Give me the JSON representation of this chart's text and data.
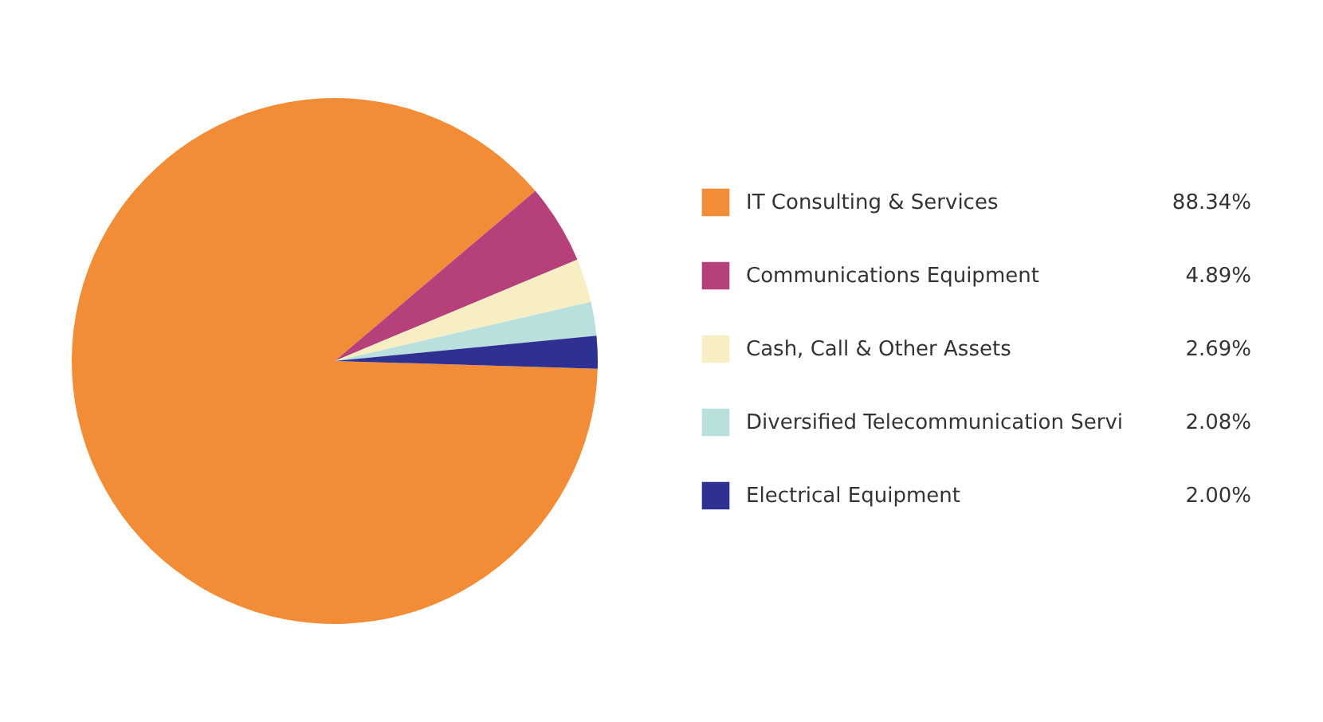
{
  "chart_data": {
    "type": "pie",
    "categories": [
      "IT Consulting & Services",
      "Communications Equipment",
      "Cash, Call & Other Assets",
      "Diversified Telecommunication Servi",
      "Electrical Equipment"
    ],
    "values": [
      88.34,
      4.89,
      2.69,
      2.08,
      2.0
    ],
    "colors": [
      "#f28c36",
      "#b5407a",
      "#f8eec4",
      "#b9e0dc",
      "#2e3192"
    ],
    "value_labels": [
      "88.34%",
      "4.89%",
      "2.69%",
      "2.08%",
      "2.00%"
    ],
    "legend": "right"
  }
}
